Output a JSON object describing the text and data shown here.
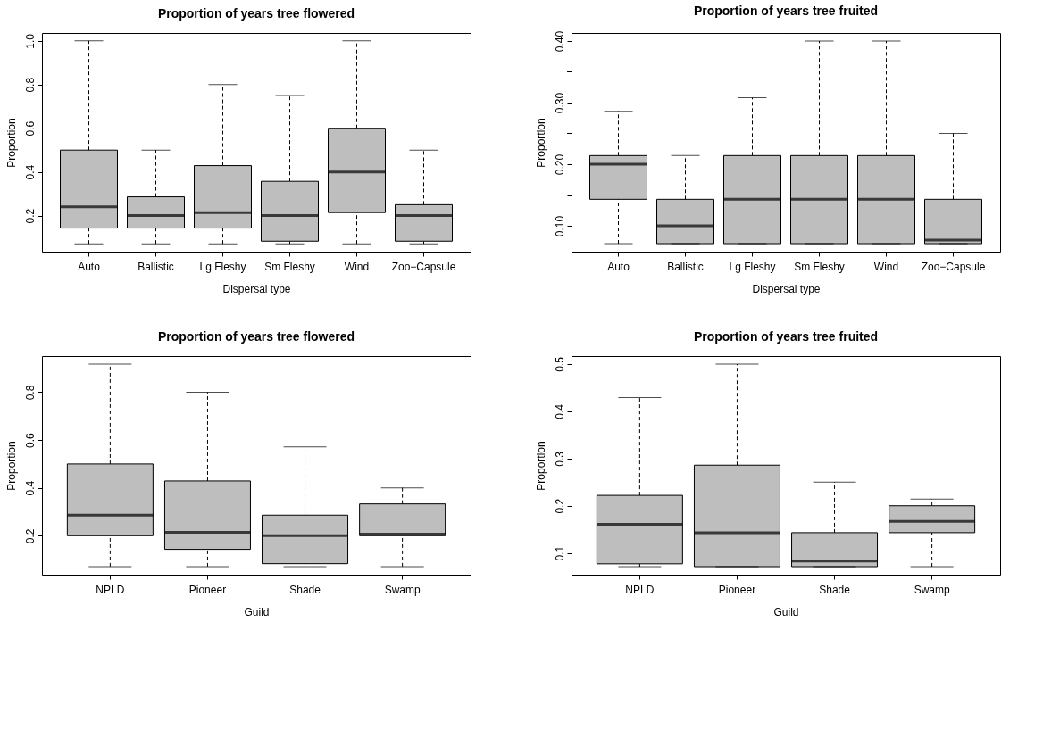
{
  "chart_data": [
    {
      "type": "box",
      "title": "Proportion of years tree flowered",
      "xlabel": "Dispersal type",
      "ylabel": "Proportion",
      "categories": [
        "Auto",
        "Ballistic",
        "Lg Fleshy",
        "Sm Fleshy",
        "Wind",
        "Zoo−Capsule"
      ],
      "ylim": [
        0.035,
        1.036
      ],
      "yticks": [
        0.2,
        0.4,
        0.6,
        0.8,
        {
          "value": 1.0,
          "label": "1.0"
        }
      ],
      "series": [
        {
          "color": "#bebebe",
          "boxes": [
            {
              "low": 0.071,
              "q1": 0.143,
              "median": 0.24,
              "q3": 0.5,
              "high": 1.0
            },
            {
              "low": 0.071,
              "q1": 0.143,
              "median": 0.2,
              "q3": 0.286,
              "high": 0.5
            },
            {
              "low": 0.071,
              "q1": 0.143,
              "median": 0.214,
              "q3": 0.429,
              "high": 0.8
            },
            {
              "low": 0.071,
              "q1": 0.083,
              "median": 0.2,
              "q3": 0.357,
              "high": 0.75
            },
            {
              "low": 0.071,
              "q1": 0.214,
              "median": 0.4,
              "q3": 0.6,
              "high": 1.0
            },
            {
              "low": 0.071,
              "q1": 0.083,
              "median": 0.2,
              "q3": 0.25,
              "high": 0.5
            }
          ]
        }
      ]
    },
    {
      "type": "box",
      "title": "Proportion of years tree fruited",
      "xlabel": "Dispersal type",
      "ylabel": "Proportion",
      "categories": [
        "Auto",
        "Ballistic",
        "Lg Fleshy",
        "Sm Fleshy",
        "Wind",
        "Zoo−Capsule"
      ],
      "ylim": [
        0.058,
        0.413
      ],
      "yticks": [
        {
          "value": 0.1,
          "label": "0.10"
        },
        {
          "value": 0.15,
          "label": null
        },
        {
          "value": 0.2,
          "label": "0.20"
        },
        {
          "value": 0.25,
          "label": null
        },
        {
          "value": 0.3,
          "label": "0.30"
        },
        {
          "value": 0.35,
          "label": null
        },
        {
          "value": 0.4,
          "label": "0.40"
        }
      ],
      "series": [
        {
          "color": "#bebebe",
          "boxes": [
            {
              "low": 0.071,
              "q1": 0.143,
              "median": 0.2,
              "q3": 0.214,
              "high": 0.286
            },
            {
              "low": 0.071,
              "q1": 0.071,
              "median": 0.1,
              "q3": 0.143,
              "high": 0.214
            },
            {
              "low": 0.071,
              "q1": 0.071,
              "median": 0.143,
              "q3": 0.214,
              "high": 0.308
            },
            {
              "low": 0.071,
              "q1": 0.071,
              "median": 0.143,
              "q3": 0.214,
              "high": 0.4
            },
            {
              "low": 0.071,
              "q1": 0.071,
              "median": 0.143,
              "q3": 0.214,
              "high": 0.4
            },
            {
              "low": 0.071,
              "q1": 0.071,
              "median": 0.077,
              "q3": 0.143,
              "high": 0.25
            }
          ]
        }
      ]
    },
    {
      "type": "box",
      "title": "Proportion of years tree flowered",
      "xlabel": "Guild",
      "ylabel": "Proportion",
      "categories": [
        "NPLD",
        "Pioneer",
        "Shade",
        "Swamp"
      ],
      "ylim": [
        0.037,
        0.951
      ],
      "yticks": [
        0.2,
        0.4,
        0.6,
        0.8
      ],
      "series": [
        {
          "color": "#bebebe",
          "boxes": [
            {
              "low": 0.071,
              "q1": 0.2,
              "median": 0.286,
              "q3": 0.5,
              "high": 0.917
            },
            {
              "low": 0.071,
              "q1": 0.143,
              "median": 0.214,
              "q3": 0.429,
              "high": 0.8
            },
            {
              "low": 0.071,
              "q1": 0.083,
              "median": 0.2,
              "q3": 0.286,
              "high": 0.571
            },
            {
              "low": 0.071,
              "q1": 0.2,
              "median": 0.207,
              "q3": 0.333,
              "high": 0.4
            }
          ]
        }
      ]
    },
    {
      "type": "box",
      "title": "Proportion of years tree fruited",
      "xlabel": "Guild",
      "ylabel": "Proportion",
      "categories": [
        "NPLD",
        "Pioneer",
        "Shade",
        "Swamp"
      ],
      "ylim": [
        0.054,
        0.517
      ],
      "yticks": [
        0.1,
        0.2,
        0.3,
        0.4,
        0.5
      ],
      "series": [
        {
          "color": "#bebebe",
          "boxes": [
            {
              "low": 0.071,
              "q1": 0.077,
              "median": 0.161,
              "q3": 0.222,
              "high": 0.429
            },
            {
              "low": 0.071,
              "q1": 0.071,
              "median": 0.143,
              "q3": 0.286,
              "high": 0.5
            },
            {
              "low": 0.071,
              "q1": 0.071,
              "median": 0.083,
              "q3": 0.143,
              "high": 0.25
            },
            {
              "low": 0.071,
              "q1": 0.143,
              "median": 0.167,
              "q3": 0.2,
              "high": 0.214
            }
          ]
        }
      ]
    }
  ]
}
